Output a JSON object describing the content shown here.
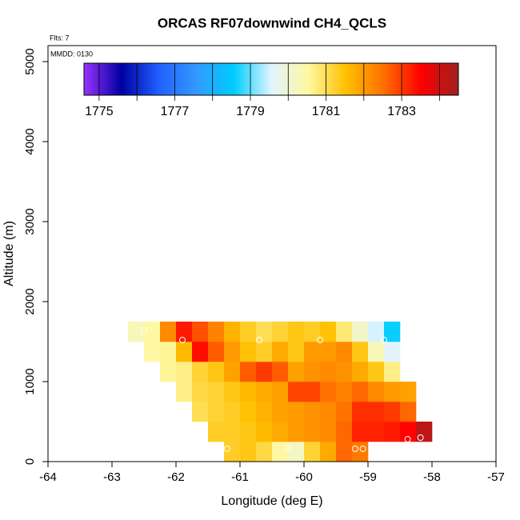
{
  "chart_data": {
    "type": "heatmap",
    "title": "ORCAS RF07downwind CH4_QCLS",
    "flights_note": "Flts: 7",
    "date_note": "MMDD: 0130",
    "xlabel": "Longitude (deg E)",
    "ylabel": "Altitude (m)",
    "xlim": [
      -64,
      -57
    ],
    "xticks": [
      -64,
      -63,
      -62,
      -61,
      -60,
      -59,
      -58,
      -57
    ],
    "ylim": [
      0,
      5200
    ],
    "yticks": [
      0,
      1000,
      2000,
      3000,
      4000,
      5000
    ],
    "xbins": [
      -62.75,
      -62.5,
      -62.25,
      -62,
      -61.75,
      -61.5,
      -61.25,
      -61,
      -60.75,
      -60.5,
      -60.25,
      -60,
      -59.75,
      -59.5,
      -59.25,
      -59,
      -58.75,
      -58.5,
      -58.25,
      -58
    ],
    "ybins": [
      0,
      250,
      500,
      750,
      1000,
      1250,
      1500,
      1750
    ],
    "z": [
      [
        null,
        null,
        null,
        null,
        null,
        null,
        1781.3,
        1781.4,
        1781.1,
        1780.5,
        1780.2,
        1781.2,
        1781.8,
        1782.6,
        1782.4,
        null,
        null,
        null,
        null
      ],
      [
        null,
        null,
        null,
        null,
        null,
        1781.3,
        1781.3,
        1781.4,
        1781.6,
        1781.8,
        1782.0,
        1782.1,
        1782.2,
        1782.6,
        1783.2,
        1783.2,
        1783.3,
        1783.5,
        1784.2
      ],
      [
        null,
        null,
        null,
        null,
        1781.0,
        1781.2,
        1781.3,
        1781.5,
        1781.7,
        1781.9,
        1782.0,
        1782.1,
        1782.2,
        1782.5,
        1783.1,
        1783.1,
        1783.0,
        1782.6,
        null
      ],
      [
        null,
        null,
        null,
        1780.7,
        1781.1,
        1781.2,
        1781.4,
        1781.6,
        1781.8,
        1781.9,
        1782.9,
        1782.9,
        1782.5,
        1782.3,
        1782.6,
        1782.2,
        1782.0,
        1781.9,
        null
      ],
      [
        null,
        null,
        1780.6,
        1780.7,
        1781.2,
        1781.4,
        1781.9,
        1782.7,
        1783.0,
        1782.7,
        1781.9,
        1782.1,
        1782.2,
        1782.1,
        1781.8,
        1781.4,
        1780.7,
        null,
        null
      ],
      [
        null,
        1780.5,
        1780.6,
        1781.6,
        1783.4,
        1782.7,
        1782.0,
        1781.5,
        1781.3,
        1781.8,
        1781.4,
        1782.0,
        1782.0,
        1782.2,
        1781.4,
        1780.3,
        1779.6,
        null,
        null
      ],
      [
        1780.3,
        1780.5,
        1782.2,
        1783.3,
        1782.8,
        1782.3,
        1781.7,
        1781.3,
        1781.0,
        1781.2,
        1781.4,
        1781.3,
        1781.5,
        1780.8,
        1780.1,
        1779.5,
        1778.6,
        null,
        null
      ]
    ],
    "points": {
      "x": [
        -62.5,
        -61.9,
        -60.7,
        -59.75,
        -58.75,
        -61.2,
        -60.25,
        -59.2,
        -59.08,
        -58.38,
        -58.18
      ],
      "y": [
        1640,
        1520,
        1520,
        1520,
        1520,
        160,
        170,
        160,
        160,
        280,
        300
      ]
    },
    "point_color": "#ffffff",
    "cbar_lim": [
      1774.6,
      1784.5
    ],
    "cbar_ticks": [
      1775,
      1777,
      1779,
      1781,
      1783
    ],
    "cbar_minor_ticks": [
      1775,
      1776,
      1777,
      1778,
      1779,
      1780,
      1781,
      1782,
      1783,
      1784
    ],
    "colormap": [
      "#9933ff",
      "#0000a0",
      "#2060ff",
      "#3399ff",
      "#00ccff",
      "#e0f4ff",
      "#fff8a0",
      "#ffc000",
      "#ff7000",
      "#ff0000",
      "#a02020"
    ]
  }
}
